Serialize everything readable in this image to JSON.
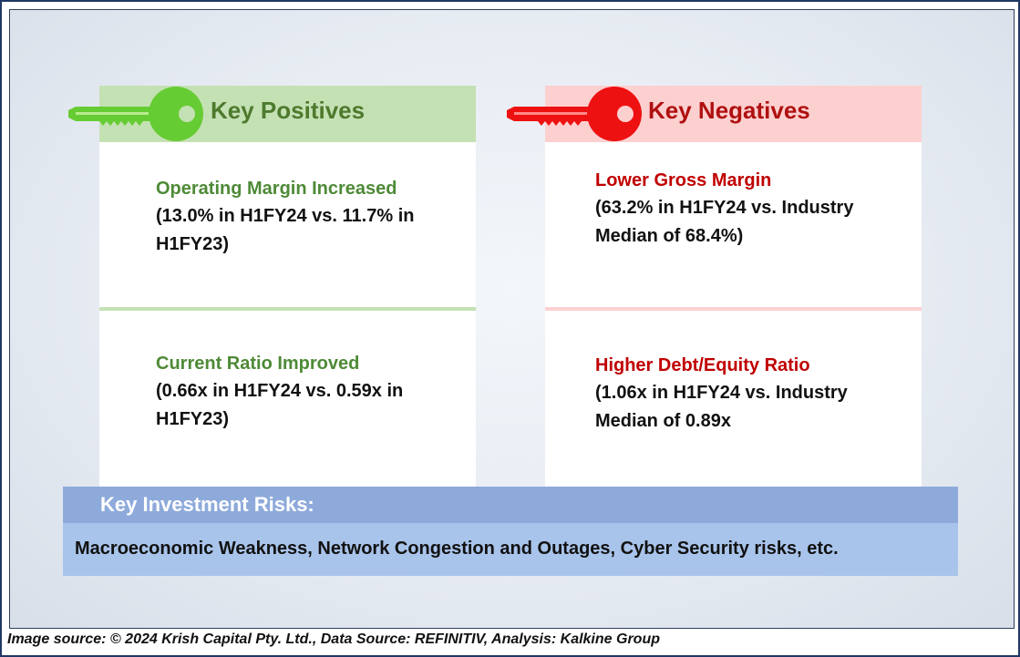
{
  "positives": {
    "header": "Key Positives",
    "items": [
      {
        "title": "Operating Margin Increased",
        "detail": "(13.0% in H1FY24 vs. 11.7% in H1FY23)"
      },
      {
        "title": "Current Ratio Improved",
        "detail": "(0.66x in H1FY24 vs. 0.59x in H1FY23)"
      }
    ],
    "key_icon": "green-key-icon",
    "accent_color": "#4e8a37",
    "header_bg": "#c4e1b4"
  },
  "negatives": {
    "header": "Key Negatives",
    "items": [
      {
        "title": "Lower Gross Margin",
        "detail": "(63.2% in H1FY24 vs. Industry Median of 68.4%)"
      },
      {
        "title": "Higher Debt/Equity Ratio",
        "detail": "(1.06x in H1FY24 vs. Industry Median of 0.89x"
      }
    ],
    "key_icon": "red-key-icon",
    "accent_color": "#c00000",
    "header_bg": "#fdd0d0"
  },
  "risks": {
    "title": "Key Investment Risks:",
    "text": "Macroeconomic Weakness, Network Congestion and Outages, Cyber Security risks, etc."
  },
  "footer": {
    "source": "Image source: © 2024 Krish Capital Pty. Ltd., Data Source: REFINITIV, Analysis: Kalkine Group"
  }
}
